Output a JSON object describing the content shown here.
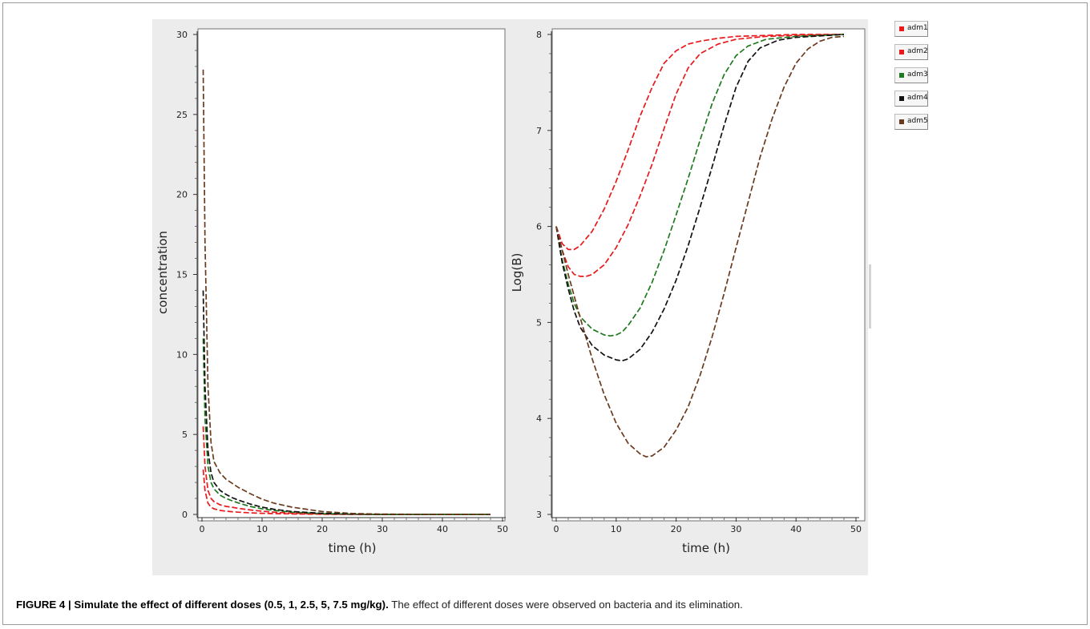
{
  "caption": {
    "bold": "FIGURE 4 | Simulate the effect of different doses (0.5, 1, 2.5, 5, 7.5 mg/kg).",
    "text": " The effect of different doses were observed on bacteria and its elimination."
  },
  "legend": {
    "items": [
      {
        "label": "adm1",
        "color": "#e8191c"
      },
      {
        "label": "adm2",
        "color": "#e8191c"
      },
      {
        "label": "adm3",
        "color": "#1e7a1e"
      },
      {
        "label": "adm4",
        "color": "#111111"
      },
      {
        "label": "adm5",
        "color": "#6b3a1e"
      }
    ]
  },
  "chart_data": [
    {
      "type": "line",
      "xlabel": "time (h)",
      "ylabel": "concentration",
      "xlim": [
        0,
        50
      ],
      "ylim": [
        0,
        30
      ],
      "xticks": [
        0,
        10,
        20,
        30,
        40,
        50
      ],
      "yticks": [
        0,
        5,
        10,
        15,
        20,
        25,
        30
      ],
      "line_style": "dashed",
      "series": [
        {
          "name": "adm1",
          "color": "#e8191c",
          "x": [
            0.2,
            0.5,
            1,
            1.5,
            2,
            3,
            4,
            5,
            6,
            8,
            10,
            12,
            15,
            20,
            25,
            30,
            40,
            48
          ],
          "y": [
            2.8,
            1.5,
            0.7,
            0.45,
            0.35,
            0.25,
            0.2,
            0.17,
            0.14,
            0.1,
            0.07,
            0.05,
            0.03,
            0.01,
            0.0,
            0.0,
            0.0,
            0.0
          ]
        },
        {
          "name": "adm2",
          "color": "#e8191c",
          "x": [
            0.2,
            0.5,
            1,
            1.5,
            2,
            3,
            4,
            5,
            6,
            8,
            10,
            12,
            15,
            20,
            25,
            30,
            40,
            48
          ],
          "y": [
            5.5,
            3.0,
            1.5,
            1.0,
            0.8,
            0.6,
            0.5,
            0.45,
            0.38,
            0.28,
            0.2,
            0.14,
            0.08,
            0.03,
            0.01,
            0.0,
            0.0,
            0.0
          ]
        },
        {
          "name": "adm3",
          "color": "#1e7a1e",
          "x": [
            0.2,
            0.5,
            1,
            1.5,
            2,
            3,
            4,
            5,
            6,
            8,
            10,
            12,
            15,
            20,
            25,
            30,
            40,
            48
          ],
          "y": [
            11.0,
            6.0,
            3.0,
            2.0,
            1.6,
            1.2,
            1.0,
            0.85,
            0.72,
            0.5,
            0.35,
            0.25,
            0.14,
            0.05,
            0.02,
            0.0,
            0.0,
            0.0
          ]
        },
        {
          "name": "adm4",
          "color": "#111111",
          "x": [
            0.2,
            0.5,
            1,
            1.5,
            2,
            3,
            4,
            5,
            6,
            8,
            10,
            12,
            15,
            20,
            25,
            30,
            40,
            48
          ],
          "y": [
            14.0,
            8.0,
            4.0,
            2.6,
            2.0,
            1.5,
            1.25,
            1.05,
            0.9,
            0.65,
            0.45,
            0.32,
            0.18,
            0.07,
            0.02,
            0.0,
            0.0,
            0.0
          ]
        },
        {
          "name": "adm5",
          "color": "#6b3a1e",
          "x": [
            0.2,
            0.5,
            1,
            1.5,
            2,
            3,
            4,
            5,
            6,
            8,
            10,
            12,
            15,
            20,
            25,
            30,
            40,
            48
          ],
          "y": [
            27.8,
            17.0,
            8.0,
            4.5,
            3.3,
            2.6,
            2.2,
            1.95,
            1.7,
            1.3,
            0.95,
            0.7,
            0.45,
            0.18,
            0.06,
            0.02,
            0.0,
            0.0
          ]
        }
      ]
    },
    {
      "type": "line",
      "xlabel": "time (h)",
      "ylabel": "Log(B)",
      "xlim": [
        0,
        50
      ],
      "ylim": [
        3,
        8
      ],
      "xticks": [
        0,
        10,
        20,
        30,
        40,
        50
      ],
      "yticks": [
        3,
        4,
        5,
        6,
        7,
        8
      ],
      "line_style": "dashed",
      "series": [
        {
          "name": "adm1",
          "color": "#e8191c",
          "x": [
            0,
            1,
            2,
            3,
            4,
            6,
            8,
            10,
            12,
            14,
            16,
            18,
            20,
            22,
            24,
            27,
            30,
            35,
            40,
            48
          ],
          "y": [
            6.0,
            5.82,
            5.76,
            5.76,
            5.8,
            5.95,
            6.18,
            6.47,
            6.8,
            7.15,
            7.45,
            7.7,
            7.83,
            7.9,
            7.93,
            7.96,
            7.98,
            7.99,
            8.0,
            8.0
          ]
        },
        {
          "name": "adm2",
          "color": "#e8191c",
          "x": [
            0,
            1,
            2,
            3,
            4,
            5,
            6,
            8,
            10,
            12,
            14,
            16,
            18,
            20,
            22,
            24,
            27,
            30,
            35,
            40,
            48
          ],
          "y": [
            6.0,
            5.75,
            5.58,
            5.5,
            5.48,
            5.48,
            5.5,
            5.6,
            5.78,
            6.02,
            6.32,
            6.65,
            7.02,
            7.38,
            7.65,
            7.8,
            7.9,
            7.95,
            7.98,
            7.99,
            8.0
          ]
        },
        {
          "name": "adm3",
          "color": "#1e7a1e",
          "x": [
            0,
            1,
            2,
            3,
            4,
            6,
            8,
            9,
            10,
            11,
            12,
            14,
            16,
            18,
            20,
            22,
            24,
            26,
            28,
            30,
            32,
            35,
            40,
            48
          ],
          "y": [
            6.0,
            5.65,
            5.4,
            5.2,
            5.06,
            4.93,
            4.87,
            4.86,
            4.87,
            4.9,
            4.97,
            5.15,
            5.42,
            5.75,
            6.12,
            6.5,
            6.9,
            7.28,
            7.58,
            7.78,
            7.88,
            7.95,
            7.98,
            8.0
          ]
        },
        {
          "name": "adm4",
          "color": "#111111",
          "x": [
            0,
            1,
            2,
            3,
            4,
            6,
            8,
            10,
            11,
            12,
            14,
            16,
            18,
            20,
            22,
            24,
            26,
            28,
            30,
            32,
            34,
            37,
            40,
            48
          ],
          "y": [
            6.0,
            5.62,
            5.35,
            5.12,
            4.95,
            4.76,
            4.66,
            4.61,
            4.6,
            4.62,
            4.72,
            4.9,
            5.14,
            5.44,
            5.8,
            6.2,
            6.62,
            7.05,
            7.45,
            7.72,
            7.86,
            7.94,
            7.97,
            8.0
          ]
        },
        {
          "name": "adm5",
          "color": "#6b3a1e",
          "x": [
            0,
            1,
            2,
            4,
            6,
            8,
            10,
            12,
            14,
            15,
            16,
            18,
            20,
            22,
            24,
            26,
            28,
            30,
            32,
            34,
            36,
            38,
            40,
            42,
            44,
            46,
            48
          ],
          "y": [
            6.0,
            5.75,
            5.5,
            5.05,
            4.62,
            4.25,
            3.95,
            3.74,
            3.63,
            3.6,
            3.61,
            3.7,
            3.88,
            4.12,
            4.45,
            4.85,
            5.3,
            5.78,
            6.25,
            6.72,
            7.12,
            7.45,
            7.7,
            7.85,
            7.93,
            7.97,
            7.98
          ]
        }
      ]
    }
  ]
}
